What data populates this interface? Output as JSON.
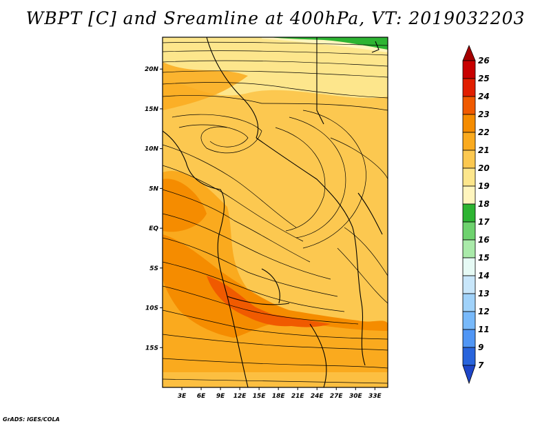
{
  "title": "WBPT [C] and Sreamline at 400hPa, VT: 2019032203",
  "footer": "GrADS: IGES/COLA",
  "map": {
    "lon_range": [
      0,
      35
    ],
    "lat_range": [
      -20,
      24
    ],
    "lon_ticks": [
      {
        "value": 3,
        "label": "3E"
      },
      {
        "value": 6,
        "label": "6E"
      },
      {
        "value": 9,
        "label": "9E"
      },
      {
        "value": 12,
        "label": "12E"
      },
      {
        "value": 15,
        "label": "15E"
      },
      {
        "value": 18,
        "label": "18E"
      },
      {
        "value": 21,
        "label": "21E"
      },
      {
        "value": 24,
        "label": "24E"
      },
      {
        "value": 27,
        "label": "27E"
      },
      {
        "value": 30,
        "label": "30E"
      },
      {
        "value": 33,
        "label": "33E"
      }
    ],
    "lat_ticks": [
      {
        "value": 20,
        "label": "20N"
      },
      {
        "value": 15,
        "label": "15N"
      },
      {
        "value": 10,
        "label": "10N"
      },
      {
        "value": 5,
        "label": "5N"
      },
      {
        "value": 0,
        "label": "EQ"
      },
      {
        "value": -5,
        "label": "5S"
      },
      {
        "value": -10,
        "label": "10S"
      },
      {
        "value": -15,
        "label": "15S"
      }
    ]
  },
  "colorbar": {
    "labels": [
      "26",
      "25",
      "24",
      "23",
      "22",
      "21",
      "20",
      "19",
      "18",
      "17",
      "16",
      "15",
      "14",
      "13",
      "12",
      "11",
      "9",
      "7"
    ],
    "colors": [
      "#a50000",
      "#c80000",
      "#e11e00",
      "#f05a00",
      "#f58c00",
      "#faaa1e",
      "#fcc850",
      "#fde68c",
      "#fff5be",
      "#2db432",
      "#6ed26e",
      "#aaeaaa",
      "#e6faf5",
      "#c8e6fa",
      "#a0d2fa",
      "#78b9fa",
      "#5096f5",
      "#2864dc",
      "#1e46c8"
    ]
  }
}
